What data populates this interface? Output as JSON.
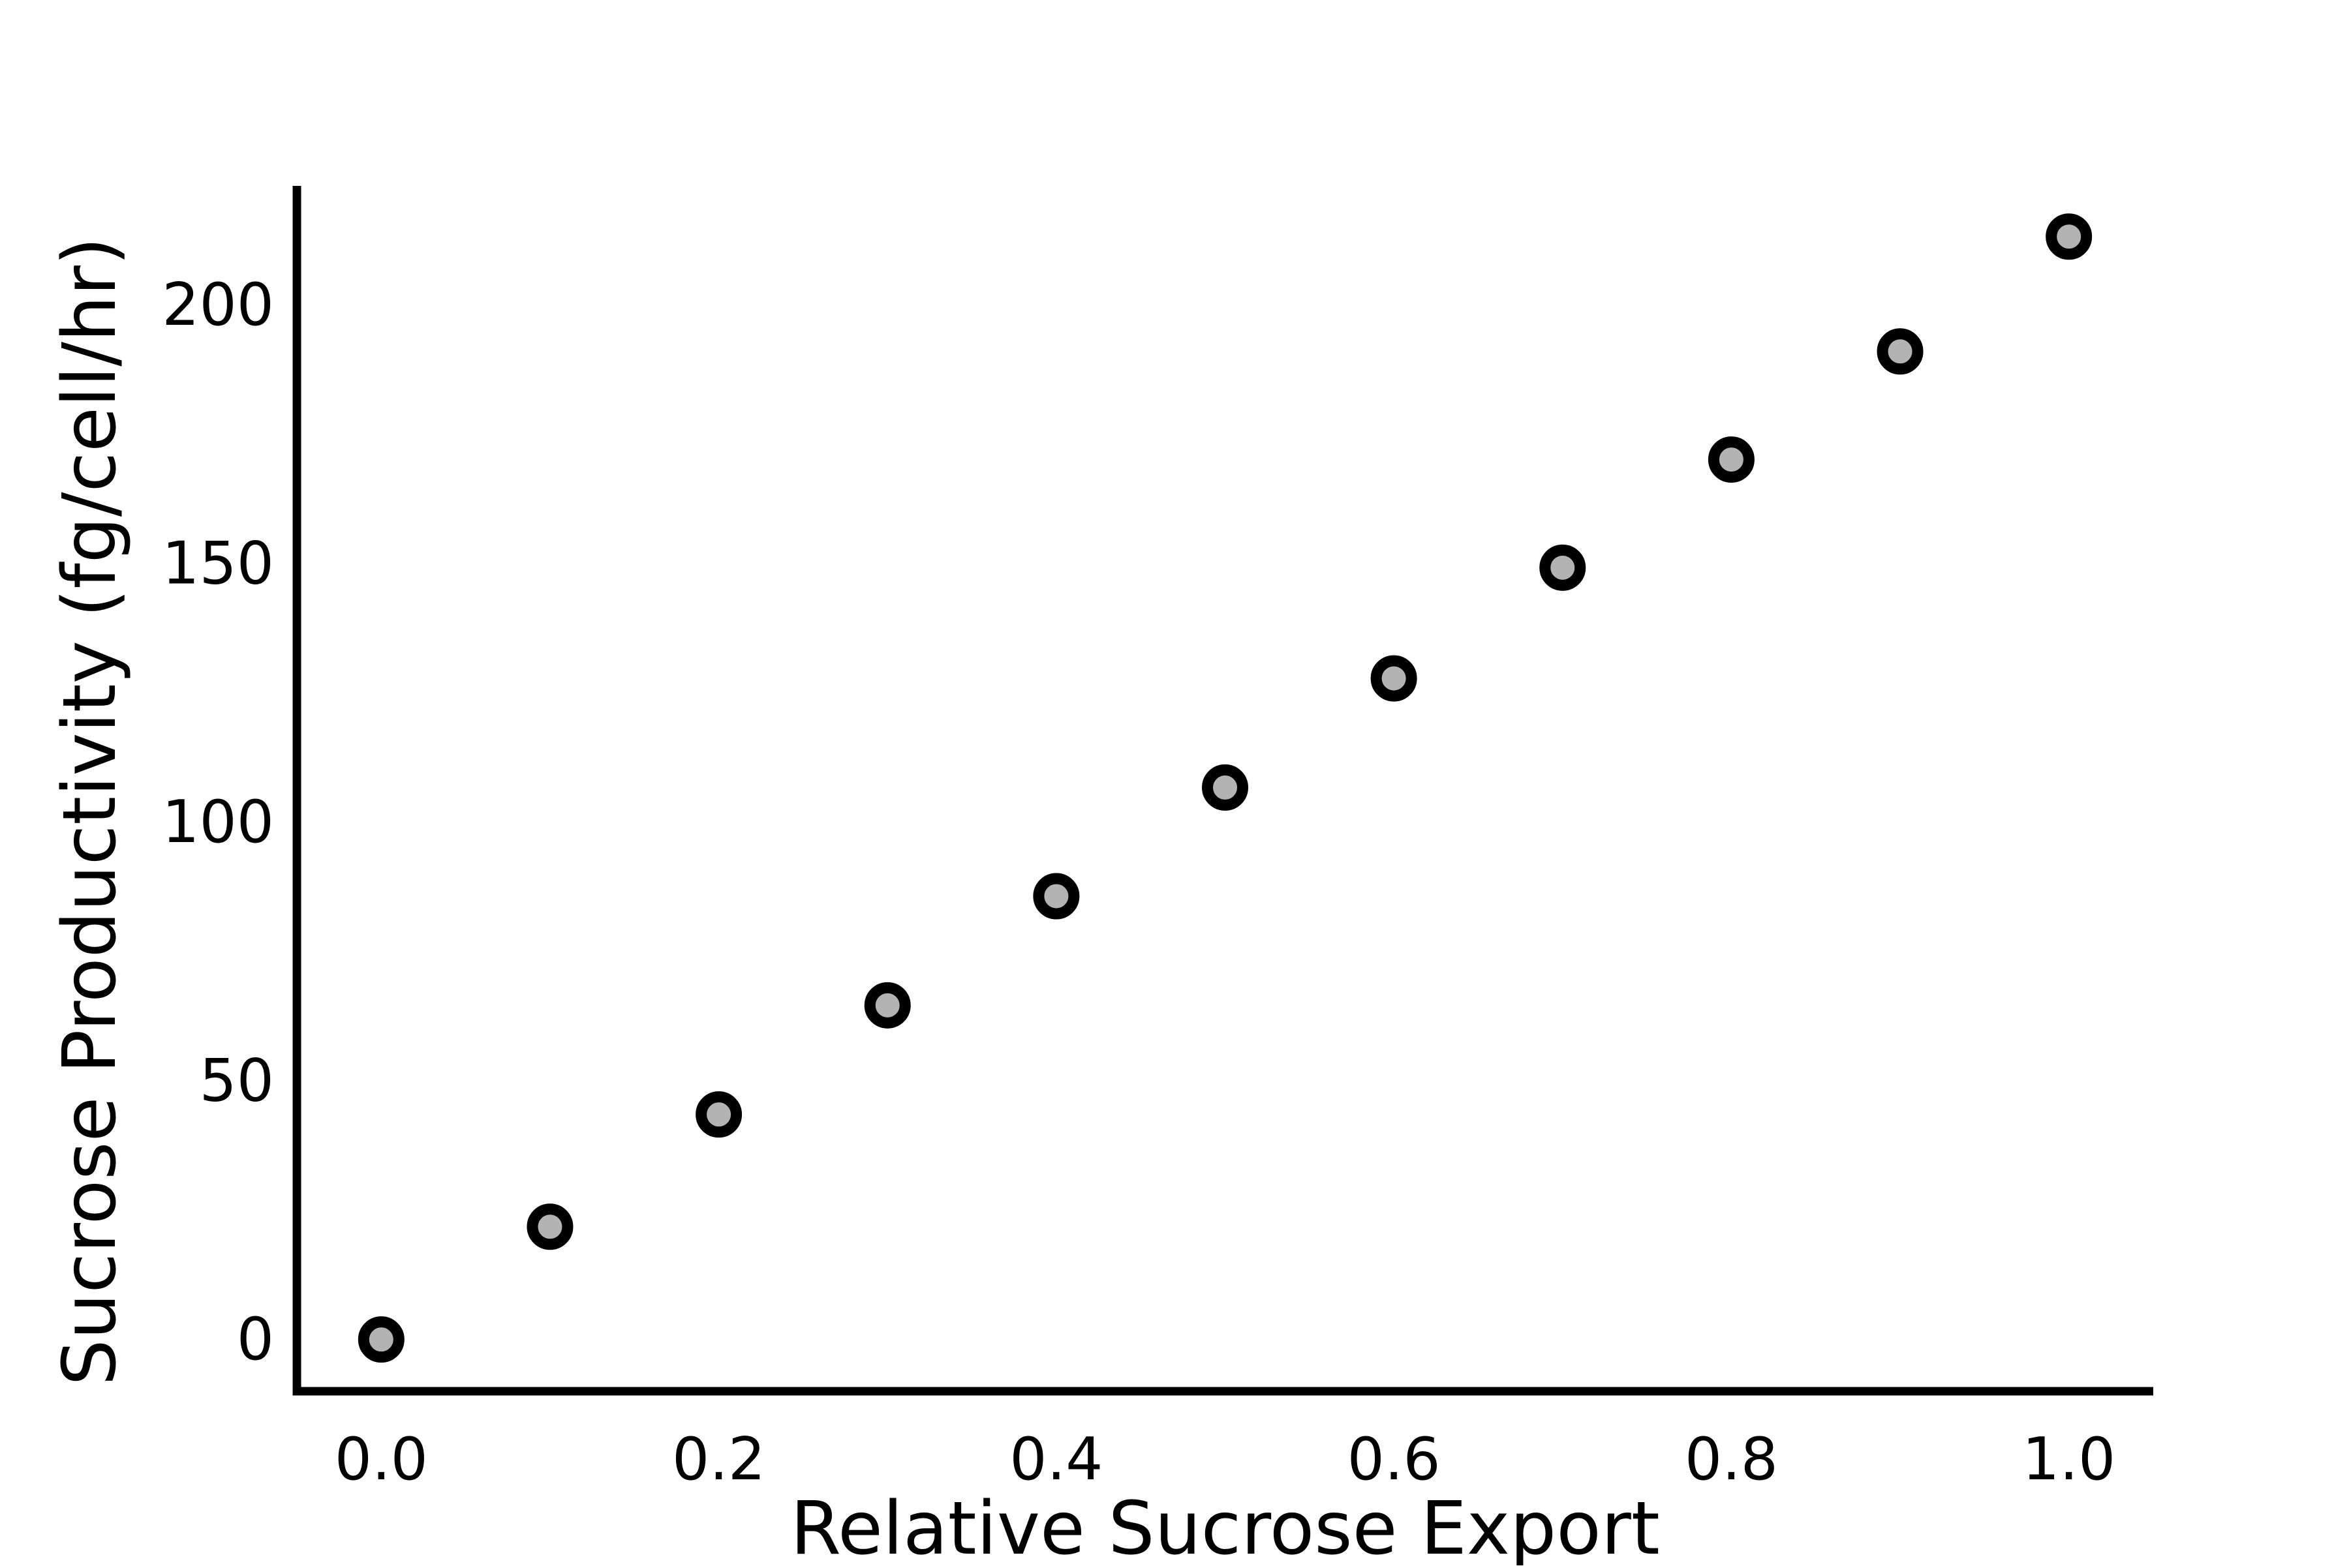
{
  "chart_data": {
    "type": "scatter",
    "xlabel": "Relative Sucrose Export",
    "ylabel": "Sucrose Productivity (fg/cell/hr)",
    "xlim": [
      -0.05,
      1.05
    ],
    "ylim": [
      -10,
      223
    ],
    "x_ticks": [
      0.0,
      0.2,
      0.4,
      0.6,
      0.8,
      1.0
    ],
    "x_tick_labels": [
      "0.0",
      "0.2",
      "0.4",
      "0.6",
      "0.8",
      "1.0"
    ],
    "y_ticks": [
      0,
      50,
      100,
      150,
      200
    ],
    "y_tick_labels": [
      "0",
      "50",
      "100",
      "150",
      "200"
    ],
    "grid": false,
    "marker_fill_color": "#b3b3b3",
    "marker_edge_color": "#000000",
    "axis_color": "#000000",
    "points": [
      {
        "x": 0.0,
        "y": 0
      },
      {
        "x": 0.1,
        "y": 21.8
      },
      {
        "x": 0.2,
        "y": 43.5
      },
      {
        "x": 0.3,
        "y": 64.6
      },
      {
        "x": 0.4,
        "y": 85.7
      },
      {
        "x": 0.5,
        "y": 106.7
      },
      {
        "x": 0.6,
        "y": 127.8
      },
      {
        "x": 0.7,
        "y": 149.2
      },
      {
        "x": 0.8,
        "y": 170.1
      },
      {
        "x": 0.9,
        "y": 191.0
      },
      {
        "x": 1.0,
        "y": 213.2
      }
    ]
  }
}
